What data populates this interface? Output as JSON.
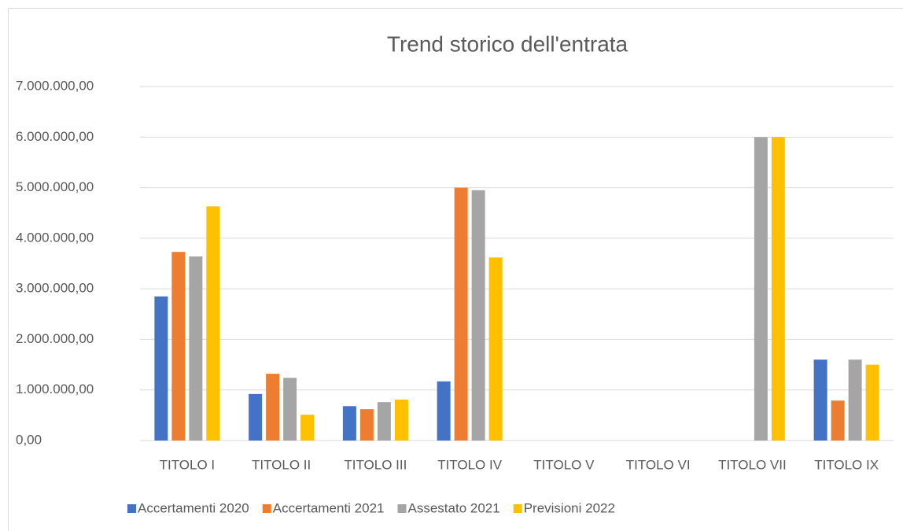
{
  "chart_data": {
    "type": "bar",
    "title": "Trend storico dell'entrata",
    "categories": [
      "TITOLO I",
      "TITOLO II",
      "TITOLO III",
      "TITOLO IV",
      "TITOLO V",
      "TITOLO VI",
      "TITOLO VII",
      "TITOLO IX"
    ],
    "series": [
      {
        "name": "Accertamenti 2020",
        "color": "#4472c4",
        "values": [
          2850000,
          920000,
          680000,
          1170000,
          0,
          0,
          0,
          1600000
        ]
      },
      {
        "name": "Accertamenti 2021",
        "color": "#ed7d31",
        "values": [
          3730000,
          1320000,
          620000,
          5000000,
          0,
          0,
          0,
          790000
        ]
      },
      {
        "name": "Assestato 2021",
        "color": "#a5a5a5",
        "values": [
          3640000,
          1240000,
          760000,
          4950000,
          0,
          0,
          6000000,
          1600000
        ]
      },
      {
        "name": "Previsioni 2022",
        "color": "#ffc000",
        "values": [
          4630000,
          510000,
          810000,
          3620000,
          0,
          0,
          6000000,
          1500000
        ]
      }
    ],
    "ylim": [
      0,
      7000000
    ],
    "yticks": [
      {
        "value": 0,
        "label": "0,00"
      },
      {
        "value": 1000000,
        "label": "1.000.000,00"
      },
      {
        "value": 2000000,
        "label": "2.000.000,00"
      },
      {
        "value": 3000000,
        "label": "3.000.000,00"
      },
      {
        "value": 4000000,
        "label": "4.000.000,00"
      },
      {
        "value": 5000000,
        "label": "5.000.000,00"
      },
      {
        "value": 6000000,
        "label": "6.000.000,00"
      },
      {
        "value": 7000000,
        "label": "7.000.000,00"
      }
    ],
    "grid": true,
    "legend": "bottom"
  }
}
